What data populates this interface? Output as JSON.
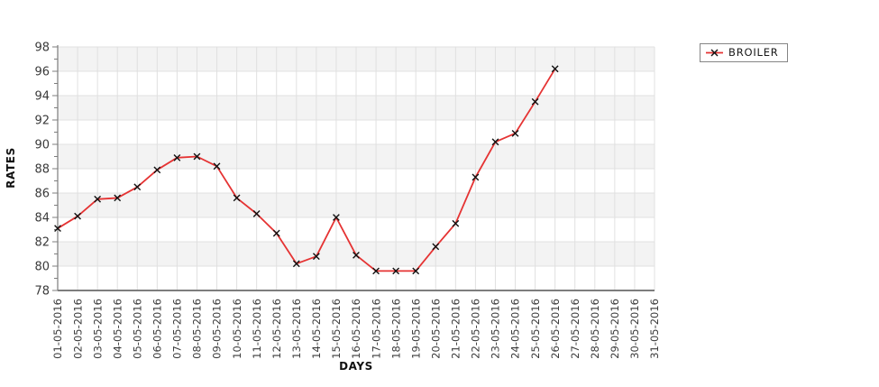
{
  "page": {
    "background": "#ffffff"
  },
  "chart_data": {
    "type": "line",
    "title": "",
    "xlabel": "DAYS",
    "ylabel": "RATES",
    "x_categories": [
      "01-05-2016",
      "02-05-2016",
      "03-05-2016",
      "04-05-2016",
      "05-05-2016",
      "06-05-2016",
      "07-05-2016",
      "08-05-2016",
      "09-05-2016",
      "10-05-2016",
      "11-05-2016",
      "12-05-2016",
      "13-05-2016",
      "14-05-2016",
      "15-05-2016",
      "16-05-2016",
      "17-05-2016",
      "18-05-2016",
      "19-05-2016",
      "20-05-2016",
      "21-05-2016",
      "22-05-2016",
      "23-05-2016",
      "24-05-2016",
      "25-05-2016",
      "26-05-2016",
      "27-05-2016",
      "28-05-2016",
      "29-05-2016",
      "30-05-2016",
      "31-05-2016"
    ],
    "series": [
      {
        "name": "BROILER",
        "color": "#e53333",
        "marker": "x",
        "marker_color": "#111111",
        "values": [
          83.1,
          84.1,
          85.5,
          85.6,
          86.5,
          87.9,
          88.9,
          89.0,
          88.2,
          85.6,
          84.3,
          82.7,
          80.2,
          80.8,
          84.0,
          80.9,
          79.6,
          79.6,
          79.6,
          81.6,
          83.5,
          87.3,
          90.2,
          90.9,
          93.5,
          96.2,
          null,
          null,
          null,
          null,
          null
        ]
      }
    ],
    "ylim": [
      78,
      98
    ],
    "y_ticks": [
      78,
      80,
      82,
      84,
      86,
      88,
      90,
      92,
      94,
      96,
      98
    ],
    "y_minor_tick_step": 1,
    "grid": true,
    "legend_position": "top-right",
    "colors": {
      "band_gray": "#f3f3f3",
      "gridline": "#e0e0e0",
      "axis": "#7d7d7d",
      "tick_label": "#3a3a3a"
    }
  }
}
